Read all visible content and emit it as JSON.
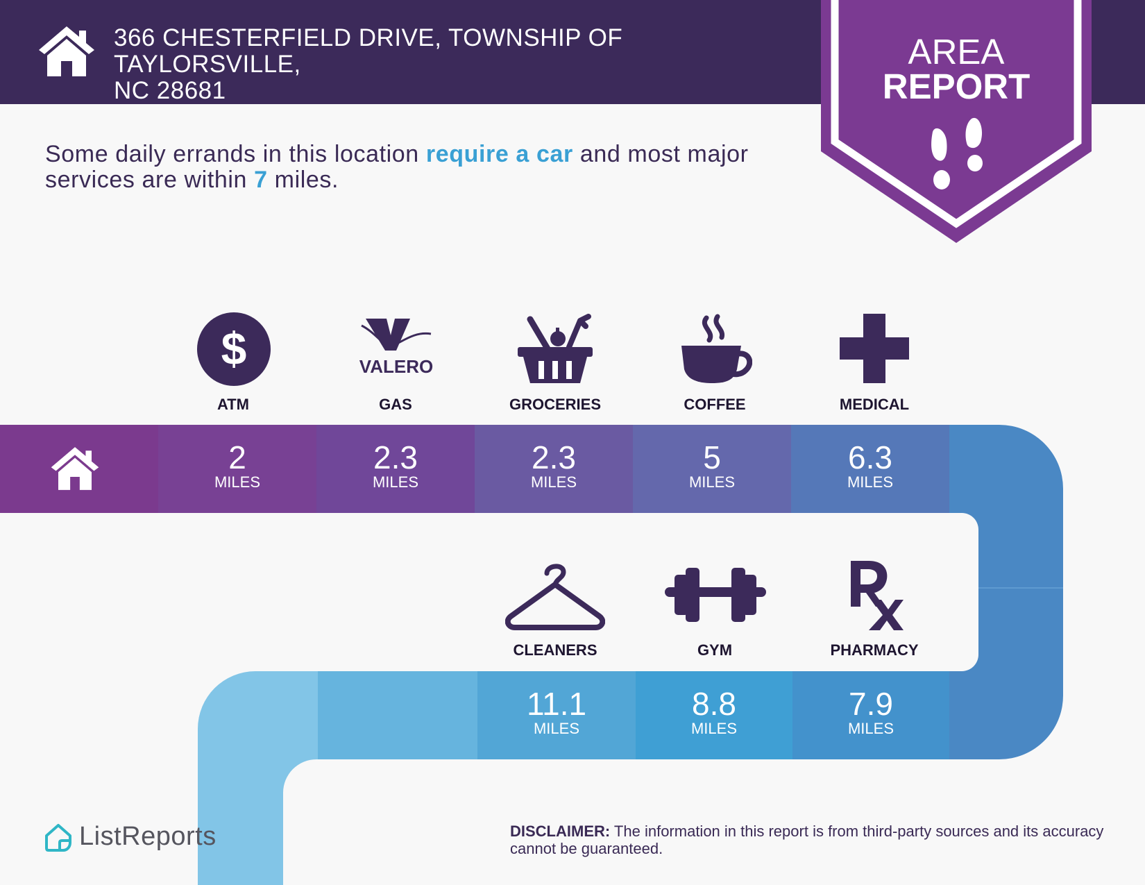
{
  "header": {
    "address_line1": "366 CHESTERFIELD DRIVE, TOWNSHIP OF TAYLORSVILLE,",
    "address_line2": "NC 28681",
    "badge_line1": "AREA",
    "badge_line2": "REPORT"
  },
  "summary": {
    "part1": "Some daily errands in this location ",
    "highlight1": "require a car",
    "part2": " and most major services are within ",
    "highlight2": "7",
    "part3": " miles."
  },
  "amenities_row1": [
    {
      "label": "ATM",
      "distance": "2",
      "unit": "MILES",
      "icon": "dollar-icon",
      "color": "#784194"
    },
    {
      "label": "GAS",
      "distance": "2.3",
      "unit": "MILES",
      "icon": "valero-logo",
      "color": "#704799"
    },
    {
      "label": "GROCERIES",
      "distance": "2.3",
      "unit": "MILES",
      "icon": "grocery-basket-icon",
      "color": "#6a5aa2"
    },
    {
      "label": "COFFEE",
      "distance": "5",
      "unit": "MILES",
      "icon": "coffee-cup-icon",
      "color": "#6468ac"
    },
    {
      "label": "MEDICAL",
      "distance": "6.3",
      "unit": "MILES",
      "icon": "medical-cross-icon",
      "color": "#5578b8"
    }
  ],
  "amenities_row2": [
    {
      "label": "CLEANERS",
      "distance": "11.1",
      "unit": "MILES",
      "icon": "hanger-icon",
      "color": "#52a6d6"
    },
    {
      "label": "GYM",
      "distance": "8.8",
      "unit": "MILES",
      "icon": "dumbbell-icon",
      "color": "#3f9fd4"
    },
    {
      "label": "PHARMACY",
      "distance": "7.9",
      "unit": "MILES",
      "icon": "rx-icon",
      "color": "#4392cc"
    }
  ],
  "gas_logo_text": "VALERO",
  "footer": {
    "logo_text": "ListReports",
    "disclaimer_bold": "DISCLAIMER:",
    "disclaimer_text": " The information in this report is from third-party sources and its accuracy cannot be guaranteed."
  },
  "colors": {
    "header_bg": "#3c2a5a",
    "badge_bg": "#7b3a92",
    "highlight": "#3aa0d4",
    "icon": "#3c2a5a"
  }
}
